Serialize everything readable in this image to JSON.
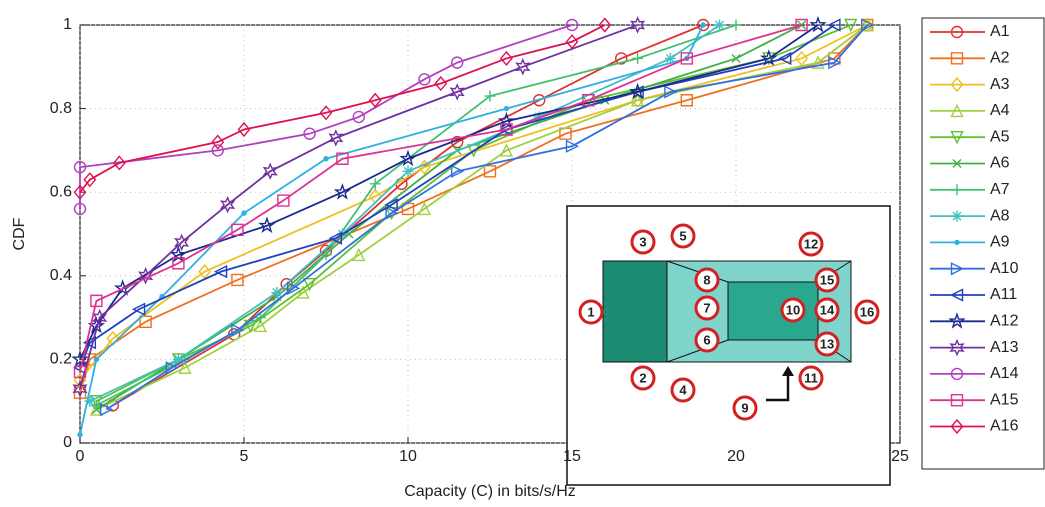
{
  "chart_data": {
    "type": "line",
    "xlabel": "Capacity (C) in bits/s/Hz",
    "ylabel": "CDF",
    "xlim": [
      0,
      25
    ],
    "ylim": [
      0,
      1
    ],
    "xticks": [
      0,
      5,
      10,
      15,
      20,
      25
    ],
    "yticks": [
      0,
      0.2,
      0.4,
      0.6,
      0.8,
      1
    ],
    "grid": true,
    "series": [
      {
        "name": "A1",
        "color": "#e03030",
        "marker": "circle",
        "x": [
          1,
          4.7,
          6.3,
          7.5,
          9.8,
          11.5,
          14,
          16.5,
          19
        ],
        "values": [
          0.09,
          0.26,
          0.38,
          0.46,
          0.62,
          0.72,
          0.82,
          0.92,
          1
        ]
      },
      {
        "name": "A2",
        "color": "#f07020",
        "marker": "square",
        "x": [
          0,
          0.3,
          2,
          4.8,
          10,
          12.5,
          14.8,
          18.5,
          23,
          24
        ],
        "values": [
          0.12,
          0.2,
          0.29,
          0.39,
          0.56,
          0.65,
          0.74,
          0.82,
          0.92,
          1
        ]
      },
      {
        "name": "A3",
        "color": "#f0c020",
        "marker": "diamond",
        "x": [
          0,
          1,
          3.8,
          9,
          10.5,
          17,
          22,
          24
        ],
        "values": [
          0.15,
          0.25,
          0.41,
          0.59,
          0.66,
          0.82,
          0.92,
          1
        ]
      },
      {
        "name": "A4",
        "color": "#a0d040",
        "marker": "triangle",
        "x": [
          0.5,
          3.2,
          5.5,
          6.8,
          8.5,
          10.5,
          13,
          17,
          22.5,
          24
        ],
        "values": [
          0.08,
          0.18,
          0.28,
          0.36,
          0.45,
          0.56,
          0.7,
          0.82,
          0.91,
          1
        ]
      },
      {
        "name": "A5",
        "color": "#60c030",
        "marker": "down",
        "x": [
          0.5,
          3,
          5.2,
          7,
          9.5,
          12,
          15.5,
          21,
          23.5
        ],
        "values": [
          0.1,
          0.2,
          0.28,
          0.38,
          0.55,
          0.7,
          0.82,
          0.92,
          1
        ]
      },
      {
        "name": "A6",
        "color": "#40b040",
        "marker": "x",
        "x": [
          0.5,
          3,
          6,
          8.2,
          11.5,
          16,
          20,
          22
        ],
        "values": [
          0.08,
          0.2,
          0.35,
          0.5,
          0.7,
          0.82,
          0.92,
          1
        ]
      },
      {
        "name": "A7",
        "color": "#40c070",
        "marker": "plus",
        "x": [
          0.5,
          3.2,
          5.5,
          7.5,
          9,
          12.5,
          17,
          20
        ],
        "values": [
          0.09,
          0.2,
          0.3,
          0.45,
          0.62,
          0.83,
          0.92,
          1
        ]
      },
      {
        "name": "A8",
        "color": "#40c0c0",
        "marker": "asterisk",
        "x": [
          0.3,
          3,
          6,
          8,
          10,
          14,
          18,
          19.5
        ],
        "values": [
          0.1,
          0.2,
          0.36,
          0.5,
          0.65,
          0.78,
          0.92,
          1
        ]
      },
      {
        "name": "A9",
        "color": "#30b0e0",
        "marker": "dot",
        "x": [
          0,
          0.5,
          2.5,
          5,
          7.5,
          13,
          18.5,
          19
        ],
        "values": [
          0.02,
          0.2,
          0.35,
          0.55,
          0.68,
          0.8,
          0.92,
          1
        ]
      },
      {
        "name": "A10",
        "color": "#3070e0",
        "marker": "right",
        "x": [
          0.8,
          2.8,
          4.8,
          6.5,
          9.5,
          11.5,
          15,
          18,
          23,
          24
        ],
        "values": [
          0.08,
          0.18,
          0.27,
          0.37,
          0.55,
          0.65,
          0.71,
          0.84,
          0.91,
          1
        ]
      },
      {
        "name": "A11",
        "color": "#2040c0",
        "marker": "left",
        "x": [
          0,
          0.3,
          1.8,
          4.3,
          7.8,
          9.5,
          13,
          17,
          21.5,
          23
        ],
        "values": [
          0.18,
          0.24,
          0.32,
          0.41,
          0.49,
          0.57,
          0.75,
          0.84,
          0.92,
          1
        ]
      },
      {
        "name": "A12",
        "color": "#1a2a90",
        "marker": "star",
        "x": [
          0,
          0.5,
          1.3,
          3,
          5.7,
          8,
          10,
          13,
          17,
          21,
          22.5
        ],
        "values": [
          0.2,
          0.28,
          0.37,
          0.45,
          0.52,
          0.6,
          0.68,
          0.77,
          0.84,
          0.92,
          1
        ]
      },
      {
        "name": "A13",
        "color": "#7030a0",
        "marker": "hexagram",
        "x": [
          0,
          0.6,
          2,
          3.1,
          4.5,
          5.8,
          7.8,
          11.5,
          13.5,
          17
        ],
        "values": [
          0.13,
          0.3,
          0.4,
          0.48,
          0.57,
          0.65,
          0.73,
          0.84,
          0.9,
          1
        ]
      },
      {
        "name": "A14",
        "color": "#b040c0",
        "marker": "circle",
        "x": [
          0,
          0,
          4.2,
          7,
          8.5,
          10.5,
          11.5,
          15
        ],
        "values": [
          0.56,
          0.66,
          0.7,
          0.74,
          0.78,
          0.87,
          0.91,
          1
        ]
      },
      {
        "name": "A15",
        "color": "#e03090",
        "marker": "square",
        "x": [
          0,
          0.5,
          3,
          4.8,
          6.2,
          8,
          13,
          15.5,
          18.5,
          22
        ],
        "values": [
          0.17,
          0.34,
          0.43,
          0.51,
          0.58,
          0.68,
          0.75,
          0.82,
          0.92,
          1
        ]
      },
      {
        "name": "A16",
        "color": "#e01050",
        "marker": "diamond",
        "x": [
          0,
          0.3,
          1.2,
          4.2,
          5,
          7.5,
          9,
          11,
          13,
          15,
          16
        ],
        "values": [
          0.6,
          0.63,
          0.67,
          0.72,
          0.75,
          0.79,
          0.82,
          0.86,
          0.92,
          0.96,
          1
        ]
      }
    ]
  },
  "inset": {
    "labels": [
      "1",
      "2",
      "3",
      "4",
      "5",
      "6",
      "7",
      "8",
      "9",
      "10",
      "11",
      "12",
      "13",
      "14",
      "15",
      "16"
    ]
  }
}
